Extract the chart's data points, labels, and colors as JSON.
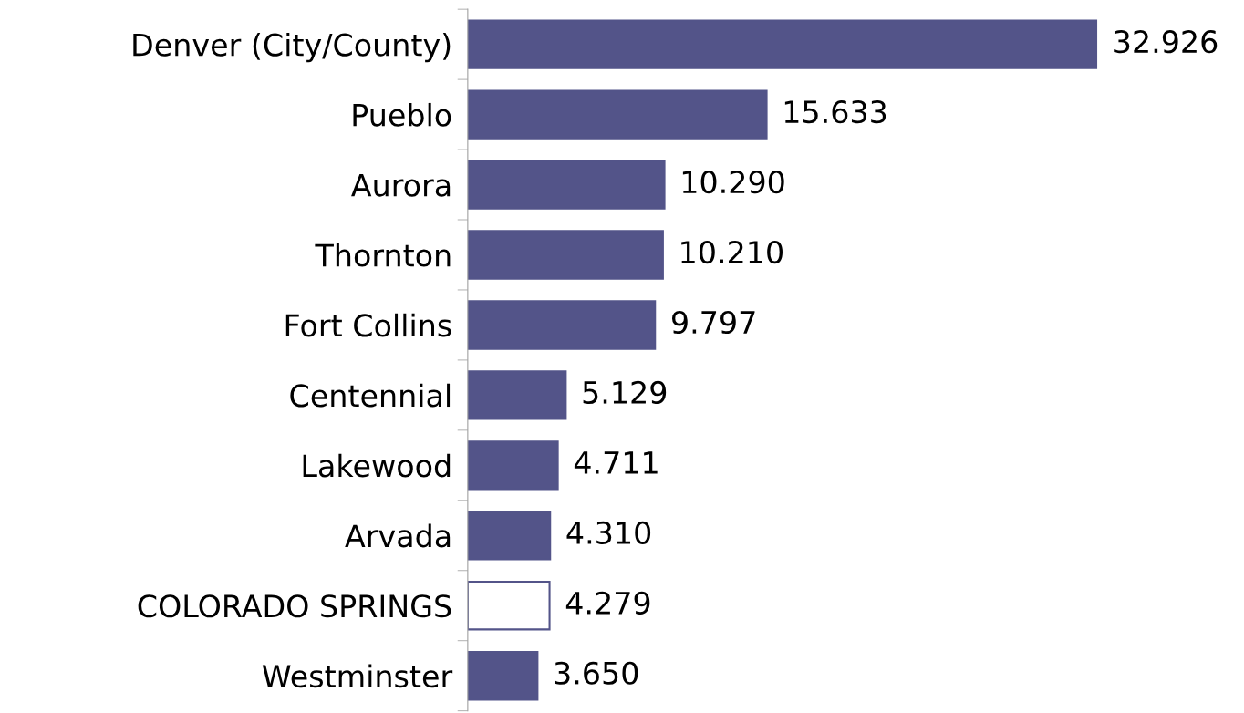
{
  "chart_data": {
    "type": "bar",
    "orientation": "horizontal",
    "categories": [
      "Denver (City/County)",
      "Pueblo",
      "Aurora",
      "Thornton",
      "Fort Collins",
      "Centennial",
      "Lakewood",
      "Arvada",
      "COLORADO SPRINGS",
      "Westminster"
    ],
    "values": [
      32.926,
      15.633,
      10.29,
      10.21,
      9.797,
      5.129,
      4.711,
      4.31,
      4.279,
      3.65
    ],
    "value_labels": [
      "32.926",
      "15.633",
      "10.290",
      "10.210",
      "9.797",
      "5.129",
      "4.711",
      "4.310",
      "4.279",
      "3.650"
    ],
    "colors": [
      "#535489",
      "#535489",
      "#535489",
      "#535489",
      "#535489",
      "#535489",
      "#535489",
      "#535489",
      "#ffffff",
      "#535489"
    ],
    "color": "#535489"
  }
}
